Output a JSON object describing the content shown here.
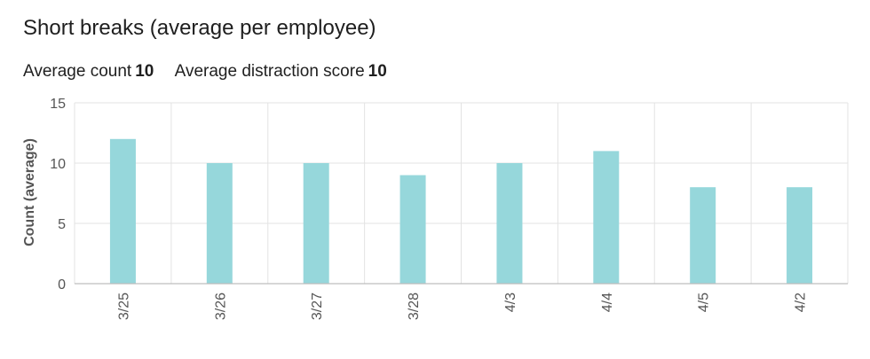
{
  "header": {
    "title": "Short breaks (average per employee)"
  },
  "summary": {
    "avg_count_label": "Average count",
    "avg_count_value": "10",
    "avg_score_label": "Average distraction score",
    "avg_score_value": "10"
  },
  "colors": {
    "bar": "#96d7db",
    "grid": "#e3e3e3",
    "axis": "#bdbdbd",
    "tick_text": "#555555"
  },
  "chart_data": {
    "type": "bar",
    "categories": [
      "3/25",
      "3/26",
      "3/27",
      "3/28",
      "4/3",
      "4/4",
      "4/5",
      "4/2"
    ],
    "values": [
      12,
      10,
      10,
      9,
      10,
      11,
      8,
      8
    ],
    "ylabel": "Count (average)",
    "ylim": [
      0,
      15
    ],
    "yticks": [
      0,
      5,
      10,
      15
    ],
    "grid": true
  }
}
